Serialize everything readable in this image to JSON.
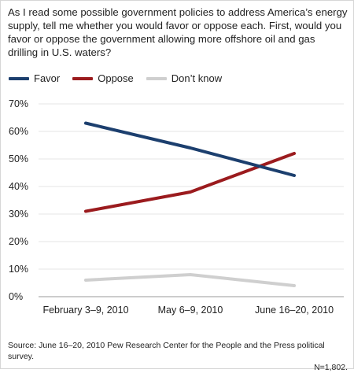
{
  "question": "As I read some possible government policies to address America’s energy supply, tell me whether you would favor or oppose each. First, would you favor or oppose the government allowing more offshore oil and gas drilling in U.S. waters?",
  "source": {
    "line1": "Source: June 16–20, 2010 Pew Research Center for the People and the Press political survey.",
    "line2": "N=1,802."
  },
  "chart_data": {
    "type": "line",
    "title": "",
    "xlabel": "",
    "ylabel": "",
    "categories": [
      "February 3–9, 2010",
      "May 6–9, 2010",
      "June 16–20, 2010"
    ],
    "ylim": [
      0,
      70
    ],
    "yticks": [
      0,
      10,
      20,
      30,
      40,
      50,
      60,
      70
    ],
    "ytick_labels": [
      "0%",
      "10%",
      "20%",
      "30%",
      "40%",
      "50%",
      "60%",
      "70%"
    ],
    "grid": true,
    "legend_position": "top-left",
    "series": [
      {
        "name": "Favor",
        "color": "#1c3f6e",
        "values": [
          63,
          54,
          44
        ]
      },
      {
        "name": "Oppose",
        "color": "#9b1b1e",
        "values": [
          31,
          38,
          52
        ]
      },
      {
        "name": "Don’t know",
        "color": "#cfcfcf",
        "values": [
          6,
          8,
          4
        ]
      }
    ]
  }
}
